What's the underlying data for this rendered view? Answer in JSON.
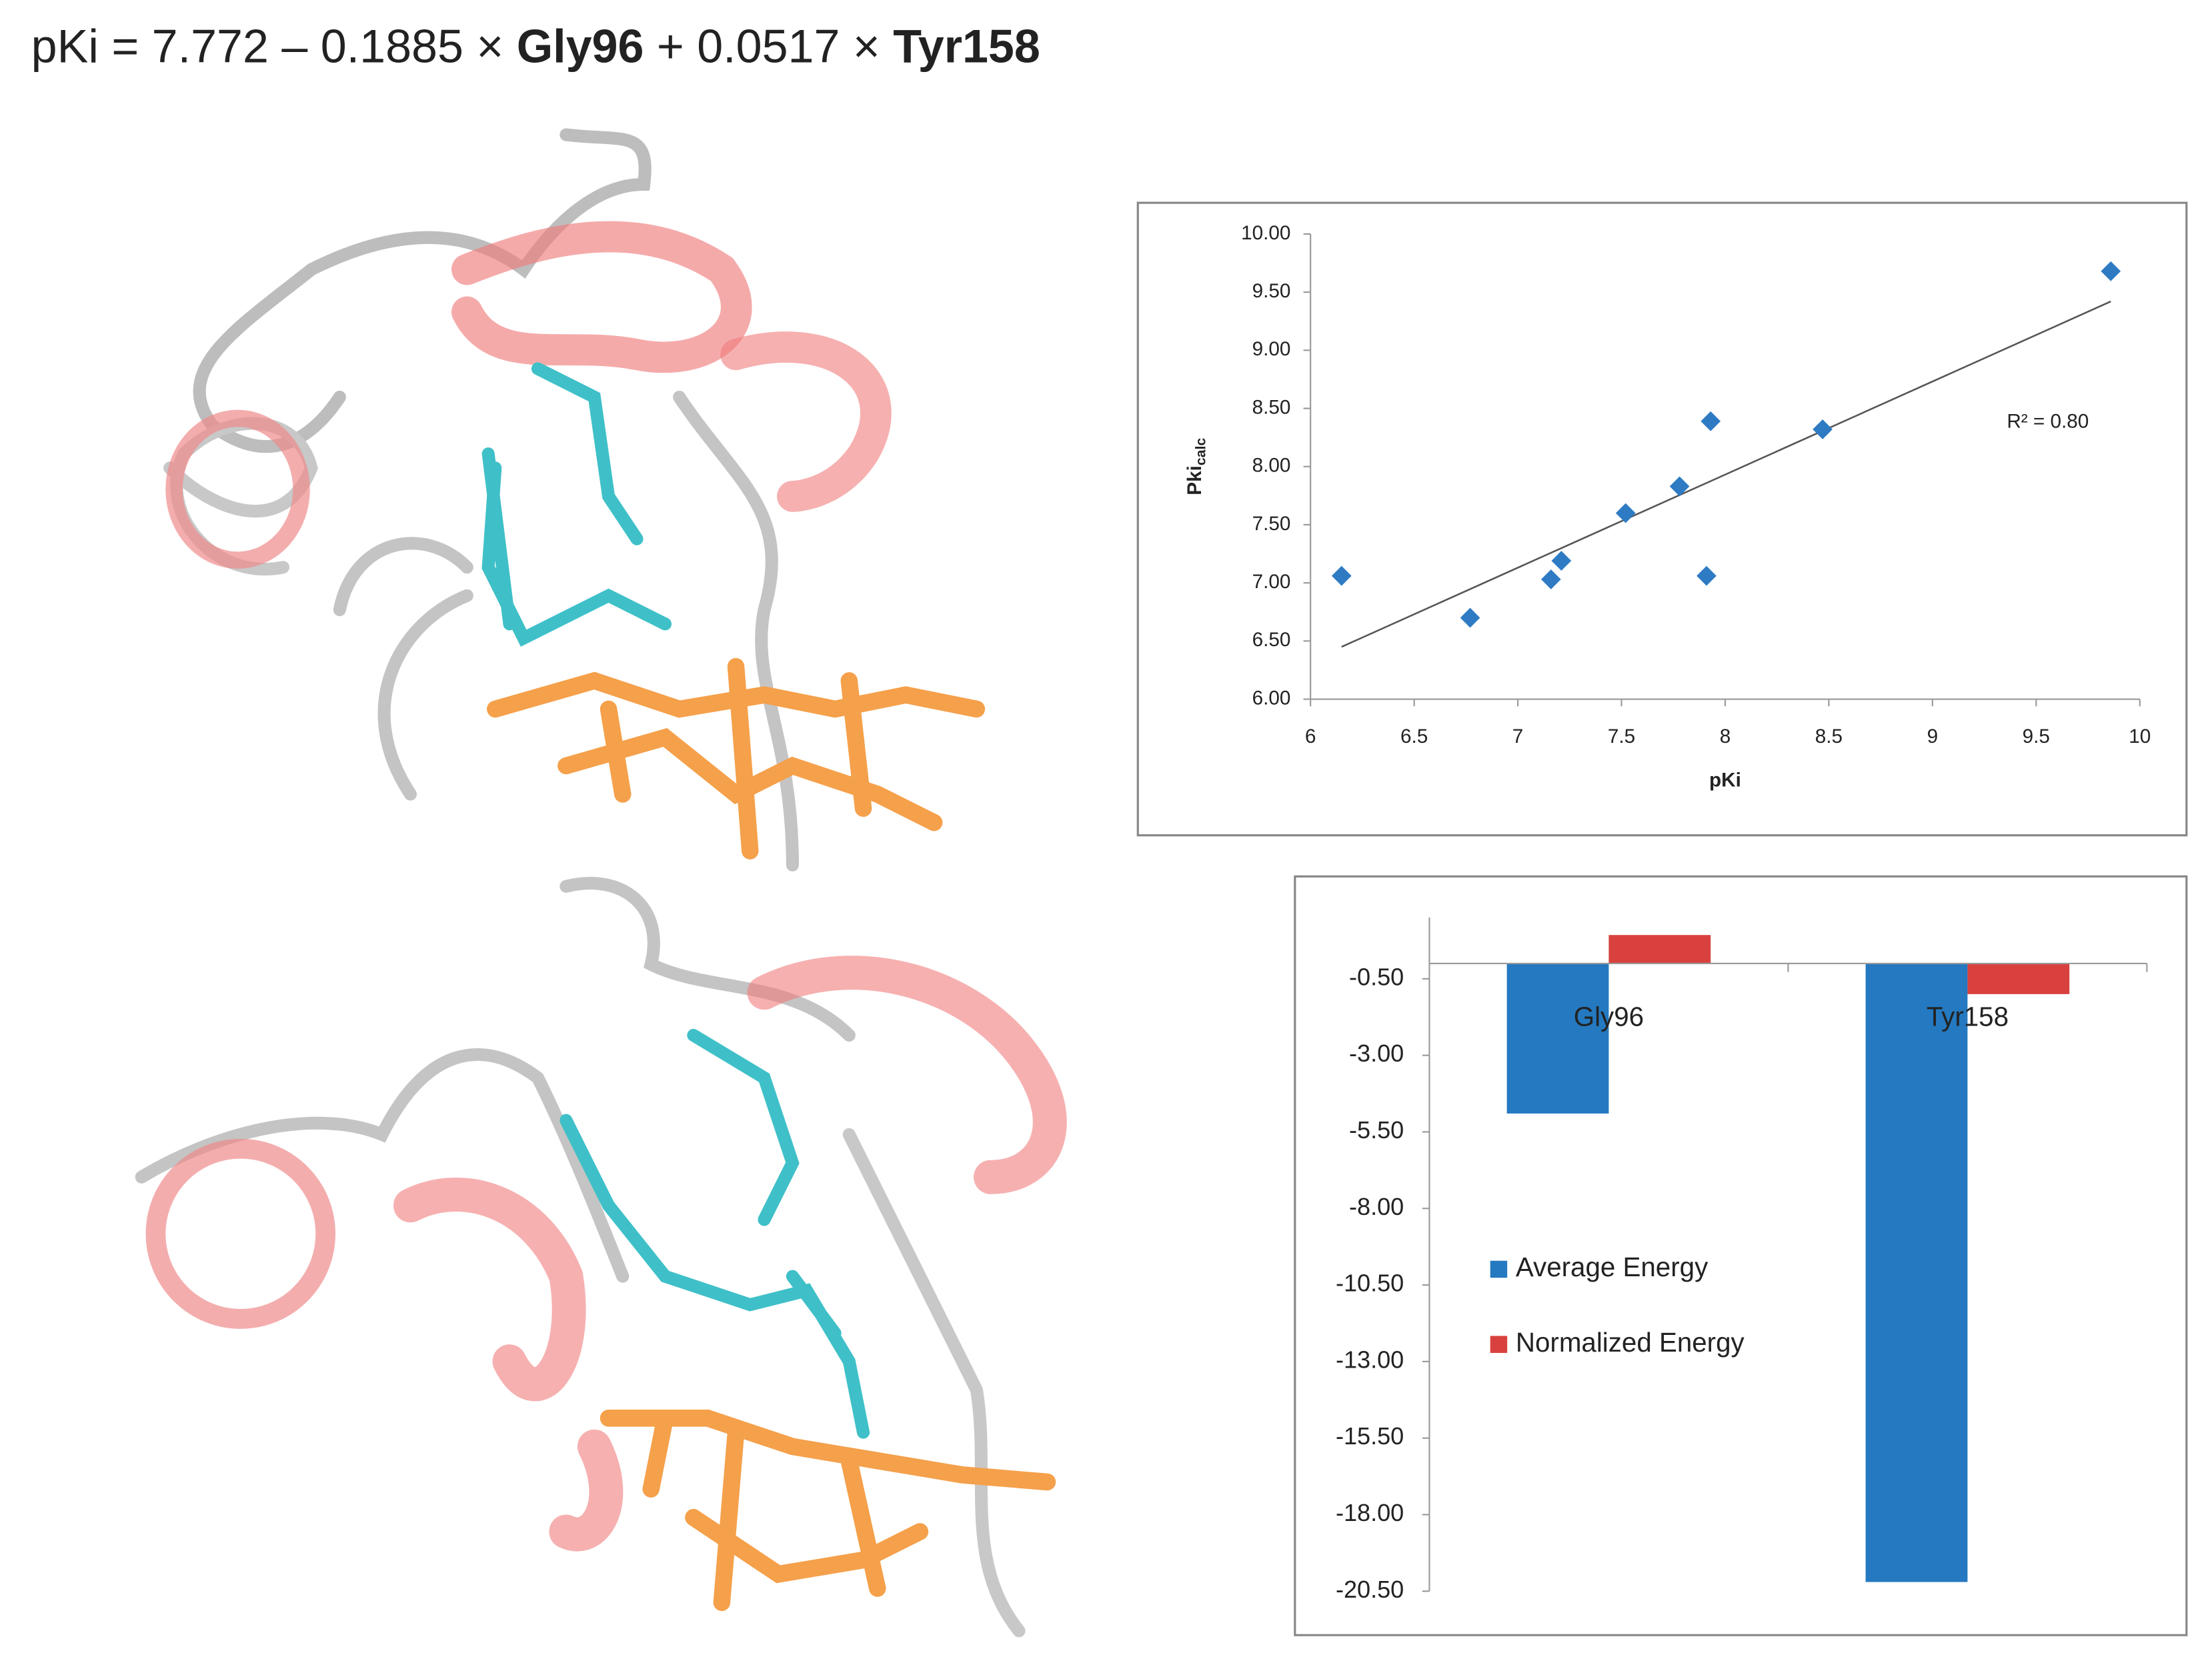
{
  "equation": {
    "parts": [
      {
        "text": "pKi = 7.772 – 0.1885 × ",
        "bold": false
      },
      {
        "text": "Gly96",
        "bold": true
      },
      {
        "text": " + 0.0517 × ",
        "bold": false
      },
      {
        "text": "Tyr158",
        "bold": true
      }
    ]
  },
  "chart_data": [
    {
      "type": "scatter",
      "x": [
        6.15,
        6.77,
        7.16,
        7.21,
        7.52,
        7.78,
        7.91,
        7.93,
        8.47,
        9.86
      ],
      "y": [
        7.06,
        6.7,
        7.03,
        7.19,
        7.6,
        7.83,
        7.06,
        8.39,
        8.32,
        9.68
      ],
      "color": "#2e7bc4",
      "trendline": {
        "x": [
          6.15,
          9.86
        ],
        "y": [
          6.45,
          9.42
        ],
        "color": "#555555"
      },
      "annotation": "R² = 0.80",
      "xlabel": "pKi",
      "ylabel": "Pki",
      "ylabel_subscript": "calc",
      "xlim": [
        6,
        10
      ],
      "xticks": [
        6,
        6.5,
        7,
        7.5,
        8,
        8.5,
        9,
        9.5,
        10
      ],
      "ylim": [
        6,
        10
      ],
      "yticks": [
        {
          "value": 6,
          "label": "6.00"
        },
        {
          "value": 6.5,
          "label": "6.50"
        },
        {
          "value": 7,
          "label": "7.00"
        },
        {
          "value": 7.5,
          "label": "7.50"
        },
        {
          "value": 8,
          "label": "8.00"
        },
        {
          "value": 8.5,
          "label": "8.50"
        },
        {
          "value": 9,
          "label": "9.00"
        },
        {
          "value": 9.5,
          "label": "9.50"
        },
        {
          "value": 10,
          "label": "10.00"
        }
      ],
      "grid": false
    },
    {
      "type": "bar",
      "categories": [
        "Gly96",
        "Tyr158"
      ],
      "series": [
        {
          "name": "Average Energy",
          "color": "#2479c0",
          "values": [
            -4.9,
            -20.2
          ]
        },
        {
          "name": "Normalized Energy",
          "color": "#d9413e",
          "values": [
            0.93,
            -1.0
          ]
        }
      ],
      "ylim": [
        -20.5,
        1.5
      ],
      "yticks": [
        {
          "value": -0.5,
          "label": "-0.50"
        },
        {
          "value": -3,
          "label": "-3.00"
        },
        {
          "value": -5.5,
          "label": "-5.50"
        },
        {
          "value": -8,
          "label": "-8.00"
        },
        {
          "value": -10.5,
          "label": "-10.50"
        },
        {
          "value": -13,
          "label": "-13.00"
        },
        {
          "value": -15.5,
          "label": "-15.50"
        },
        {
          "value": -18,
          "label": "-18.00"
        },
        {
          "value": -20.5,
          "label": "-20.50"
        }
      ],
      "legend": "lower-left",
      "grid": false
    }
  ]
}
